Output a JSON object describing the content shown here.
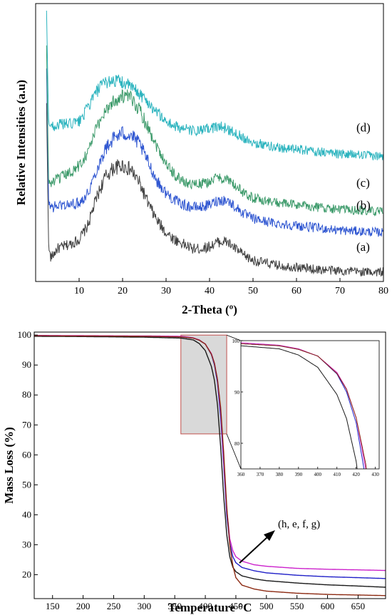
{
  "chart_data": [
    {
      "type": "line",
      "title": "",
      "xlabel": "2-Theta (º)",
      "ylabel": "Relative Intensities (a.u)",
      "xlim": [
        0,
        80
      ],
      "x_ticks": [
        10,
        20,
        30,
        40,
        50,
        60,
        70,
        80
      ],
      "y_ticks_shown": false,
      "grid": false,
      "series": [
        {
          "label": "(a)",
          "color": "#3f3f3f",
          "x": [
            2.5,
            3,
            3.5,
            5,
            8,
            10,
            12,
            14,
            16,
            18,
            20,
            22,
            24,
            26,
            28,
            30,
            32,
            34,
            36,
            38,
            40,
            42,
            44,
            46,
            48,
            50,
            55,
            60,
            65,
            70,
            75,
            80
          ],
          "y": [
            0.75,
            0.12,
            0.08,
            0.12,
            0.14,
            0.16,
            0.22,
            0.34,
            0.43,
            0.47,
            0.48,
            0.46,
            0.4,
            0.31,
            0.24,
            0.19,
            0.16,
            0.14,
            0.12,
            0.12,
            0.13,
            0.15,
            0.15,
            0.12,
            0.09,
            0.07,
            0.05,
            0.04,
            0.03,
            0.025,
            0.02,
            0.02
          ]
        },
        {
          "label": "(b)",
          "color": "#2f56d1",
          "x": [
            2.5,
            3,
            4,
            6,
            8,
            10,
            12,
            14,
            16,
            18,
            20,
            22,
            24,
            26,
            28,
            30,
            32,
            34,
            36,
            38,
            40,
            42,
            44,
            46,
            48,
            50,
            55,
            60,
            65,
            70,
            75,
            80
          ],
          "y": [
            0.9,
            0.31,
            0.3,
            0.31,
            0.31,
            0.32,
            0.36,
            0.46,
            0.55,
            0.6,
            0.62,
            0.61,
            0.57,
            0.49,
            0.41,
            0.36,
            0.33,
            0.31,
            0.3,
            0.3,
            0.31,
            0.33,
            0.33,
            0.3,
            0.27,
            0.25,
            0.23,
            0.22,
            0.21,
            0.2,
            0.195,
            0.19
          ]
        },
        {
          "label": "(c)",
          "color": "#3c9a6a",
          "x": [
            2.5,
            3,
            4,
            6,
            8,
            10,
            12,
            14,
            16,
            18,
            20,
            22,
            24,
            26,
            28,
            30,
            32,
            34,
            36,
            38,
            40,
            42,
            44,
            46,
            48,
            50,
            55,
            60,
            65,
            70,
            75,
            80
          ],
          "y": [
            1.0,
            0.4,
            0.41,
            0.43,
            0.45,
            0.48,
            0.54,
            0.64,
            0.72,
            0.76,
            0.78,
            0.77,
            0.72,
            0.64,
            0.56,
            0.49,
            0.44,
            0.41,
            0.4,
            0.4,
            0.41,
            0.43,
            0.42,
            0.39,
            0.36,
            0.34,
            0.32,
            0.31,
            0.3,
            0.29,
            0.285,
            0.28
          ]
        },
        {
          "label": "(d)",
          "color": "#2ab3be",
          "x": [
            2.5,
            3,
            4,
            6,
            8,
            10,
            12,
            14,
            16,
            18,
            20,
            22,
            24,
            26,
            28,
            30,
            32,
            34,
            36,
            38,
            40,
            42,
            44,
            46,
            48,
            50,
            55,
            60,
            65,
            70,
            75,
            80
          ],
          "y": [
            1.15,
            0.66,
            0.65,
            0.66,
            0.66,
            0.67,
            0.73,
            0.8,
            0.84,
            0.85,
            0.84,
            0.82,
            0.79,
            0.75,
            0.71,
            0.67,
            0.65,
            0.64,
            0.63,
            0.63,
            0.64,
            0.65,
            0.64,
            0.62,
            0.6,
            0.58,
            0.56,
            0.55,
            0.54,
            0.53,
            0.525,
            0.52
          ]
        }
      ]
    },
    {
      "type": "line",
      "title": "",
      "xlabel": "Temperature °C",
      "ylabel": "Mass Loss (%)",
      "xlim": [
        120,
        695
      ],
      "ylim": [
        12,
        101
      ],
      "x_ticks": [
        150,
        200,
        250,
        300,
        350,
        400,
        450,
        500,
        550,
        600,
        650
      ],
      "y_ticks": [
        20,
        30,
        40,
        50,
        60,
        70,
        80,
        90,
        100
      ],
      "grid": false,
      "zoom_region": {
        "x": [
          360,
          435
        ],
        "y": [
          67,
          100
        ]
      },
      "annotation": "(h, e, f, g)",
      "series": [
        {
          "name": "black",
          "color": "#1a1a1a",
          "x": [
            120,
            200,
            300,
            360,
            380,
            390,
            400,
            410,
            415,
            420,
            425,
            430,
            435,
            440,
            445,
            450,
            460,
            480,
            500,
            550,
            600,
            650,
            695
          ],
          "y": [
            99.6,
            99.5,
            99.3,
            99.0,
            98.4,
            97.2,
            94.8,
            89.5,
            84.8,
            76.5,
            63.0,
            46.5,
            33.5,
            26.0,
            22.5,
            21.0,
            19.6,
            18.6,
            18.0,
            17.2,
            16.6,
            16.2,
            15.8
          ]
        },
        {
          "name": "blue",
          "color": "#2020c8",
          "x": [
            120,
            200,
            300,
            360,
            380,
            390,
            400,
            410,
            415,
            420,
            425,
            430,
            435,
            440,
            445,
            450,
            460,
            480,
            500,
            550,
            600,
            650,
            695
          ],
          "y": [
            99.8,
            99.7,
            99.6,
            99.4,
            99.0,
            98.3,
            97.0,
            93.5,
            90.0,
            84.0,
            73.0,
            57.0,
            40.0,
            30.5,
            26.0,
            24.0,
            22.4,
            21.3,
            20.6,
            19.8,
            19.3,
            19.0,
            18.7
          ]
        },
        {
          "name": "magenta",
          "color": "#cc22cc",
          "x": [
            120,
            200,
            300,
            360,
            380,
            390,
            400,
            410,
            415,
            420,
            425,
            430,
            435,
            440,
            445,
            450,
            460,
            480,
            500,
            550,
            600,
            650,
            695
          ],
          "y": [
            99.9,
            99.8,
            99.7,
            99.6,
            99.1,
            98.4,
            97.0,
            93.8,
            90.6,
            85.0,
            75.0,
            59.0,
            42.0,
            32.0,
            28.0,
            26.0,
            24.5,
            23.3,
            22.8,
            22.1,
            21.8,
            21.6,
            21.4
          ]
        },
        {
          "name": "brown",
          "color": "#8c2a12",
          "x": [
            120,
            200,
            300,
            360,
            380,
            390,
            400,
            410,
            415,
            420,
            425,
            430,
            435,
            440,
            445,
            450,
            460,
            480,
            500,
            550,
            600,
            650,
            695
          ],
          "y": [
            99.8,
            99.7,
            99.6,
            99.4,
            99.0,
            98.3,
            97.0,
            93.6,
            90.5,
            85.0,
            76.0,
            61.0,
            43.0,
            30.0,
            23.0,
            19.0,
            16.5,
            15.2,
            14.5,
            13.8,
            13.4,
            13.2,
            13.0
          ]
        }
      ],
      "inset": {
        "xlim": [
          360,
          432
        ],
        "ylim": [
          75,
          100
        ],
        "x_ticks": [
          360,
          370,
          380,
          390,
          400,
          410,
          420,
          430
        ],
        "y_ticks": [
          80,
          90,
          100
        ]
      }
    }
  ]
}
